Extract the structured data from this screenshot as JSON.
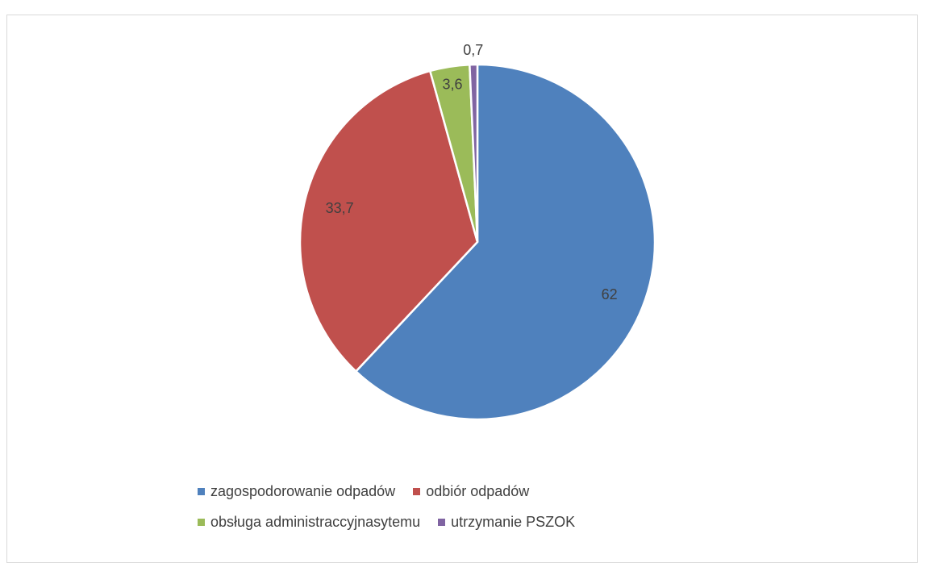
{
  "chart_data": {
    "type": "pie",
    "categories": [
      "zagospodorowanie odpadów",
      "odbiór odpadów",
      "obsługa administraccyjnasytemu",
      "utrzymanie PSZOK"
    ],
    "values": [
      62,
      33.7,
      3.6,
      0.7
    ],
    "data_labels": [
      "62",
      "33,7",
      "3,6",
      "0,7"
    ],
    "colors": [
      "#4f81bd",
      "#c0504d",
      "#9bbb59",
      "#8064a2"
    ],
    "title": "",
    "legend_position": "bottom"
  },
  "legend": {
    "rows": [
      [
        {
          "label": "zagospodorowanie odpadów",
          "color": "#4f81bd"
        },
        {
          "label": "odbiór odpadów",
          "color": "#c0504d"
        }
      ],
      [
        {
          "label": "obsługa administraccyjnasytemu",
          "color": "#9bbb59"
        },
        {
          "label": "utrzymanie PSZOK",
          "color": "#8064a2"
        }
      ]
    ]
  }
}
